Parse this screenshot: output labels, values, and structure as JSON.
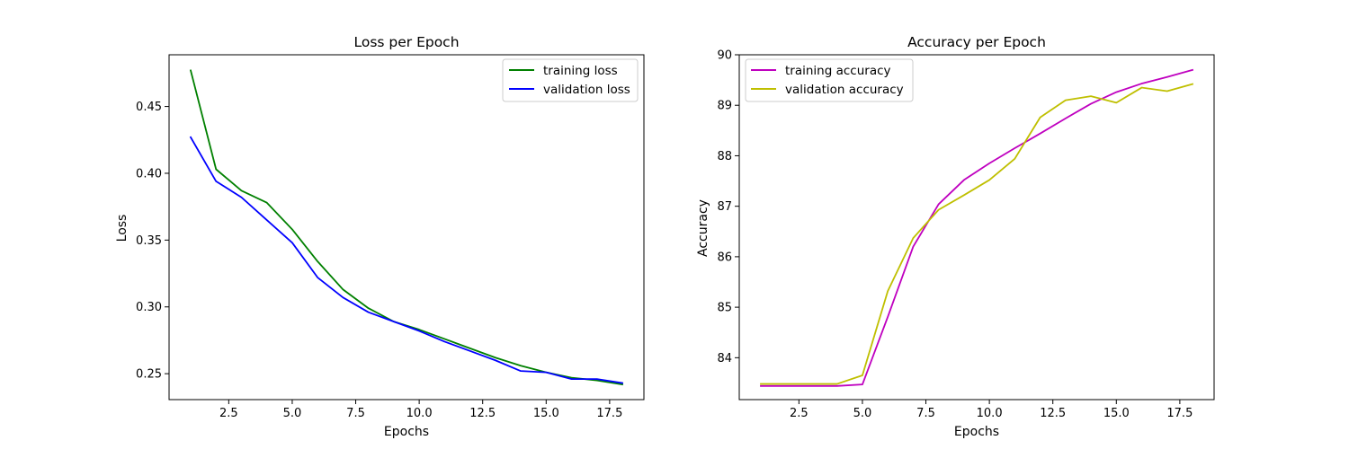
{
  "chart_data": [
    {
      "type": "line",
      "title": "Loss per Epoch",
      "xlabel": "Epochs",
      "ylabel": "Loss",
      "xlim": [
        0.15,
        18.85
      ],
      "ylim": [
        0.2306,
        0.4887
      ],
      "xticks": [
        2.5,
        5.0,
        7.5,
        10.0,
        12.5,
        15.0,
        17.5
      ],
      "xtick_labels": [
        "2.5",
        "5.0",
        "7.5",
        "10.0",
        "12.5",
        "15.0",
        "17.5"
      ],
      "yticks": [
        0.25,
        0.3,
        0.35,
        0.4,
        0.45
      ],
      "ytick_labels": [
        "0.25",
        "0.30",
        "0.35",
        "0.40",
        "0.45"
      ],
      "grid": false,
      "legend": "upper right",
      "x": [
        1,
        2,
        3,
        4,
        5,
        6,
        7,
        8,
        9,
        10,
        11,
        12,
        13,
        14,
        15,
        16,
        17,
        18
      ],
      "series": [
        {
          "name": "training loss",
          "color": "#008000",
          "values": [
            0.477,
            0.403,
            0.387,
            0.378,
            0.358,
            0.334,
            0.313,
            0.299,
            0.289,
            0.283,
            0.276,
            0.269,
            0.262,
            0.256,
            0.251,
            0.247,
            0.245,
            0.242
          ]
        },
        {
          "name": "validation loss",
          "color": "#0000ff",
          "values": [
            0.427,
            0.394,
            0.382,
            0.365,
            0.348,
            0.322,
            0.307,
            0.296,
            0.289,
            0.282,
            0.274,
            0.267,
            0.26,
            0.252,
            0.251,
            0.246,
            0.246,
            0.243
          ]
        }
      ]
    },
    {
      "type": "line",
      "title": "Accuracy per Epoch",
      "xlabel": "Epochs",
      "ylabel": "Accuracy",
      "xlim": [
        0.15,
        18.85
      ],
      "ylim": [
        83.17,
        90.0
      ],
      "xticks": [
        2.5,
        5.0,
        7.5,
        10.0,
        12.5,
        15.0,
        17.5
      ],
      "xtick_labels": [
        "2.5",
        "5.0",
        "7.5",
        "10.0",
        "12.5",
        "15.0",
        "17.5"
      ],
      "yticks": [
        84,
        85,
        86,
        87,
        88,
        89,
        90
      ],
      "ytick_labels": [
        "84",
        "85",
        "86",
        "87",
        "88",
        "89",
        "90"
      ],
      "grid": false,
      "legend": "upper left",
      "x": [
        1,
        2,
        3,
        4,
        5,
        6,
        7,
        8,
        9,
        10,
        11,
        12,
        13,
        14,
        15,
        16,
        17,
        18
      ],
      "series": [
        {
          "name": "training accuracy",
          "color": "#bf00bf",
          "values": [
            83.44,
            83.44,
            83.44,
            83.44,
            83.47,
            84.81,
            86.2,
            87.04,
            87.52,
            87.85,
            88.15,
            88.44,
            88.74,
            89.03,
            89.26,
            89.43,
            89.56,
            89.7
          ]
        },
        {
          "name": "validation accuracy",
          "color": "#bfbf00",
          "values": [
            83.48,
            83.48,
            83.48,
            83.48,
            83.65,
            85.32,
            86.37,
            86.93,
            87.22,
            87.52,
            87.94,
            88.76,
            89.1,
            89.18,
            89.05,
            89.35,
            89.28,
            89.42
          ]
        }
      ]
    }
  ]
}
